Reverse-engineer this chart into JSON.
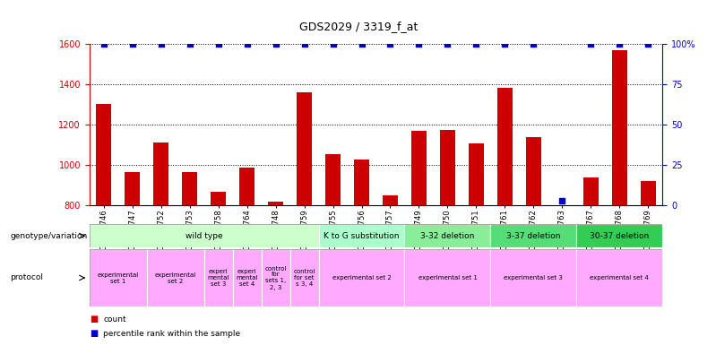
{
  "title": "GDS2029 / 3319_f_at",
  "samples": [
    "GSM86746",
    "GSM86747",
    "GSM86752",
    "GSM86753",
    "GSM86758",
    "GSM86764",
    "GSM86748",
    "GSM86759",
    "GSM86755",
    "GSM86756",
    "GSM86757",
    "GSM86749",
    "GSM86750",
    "GSM86751",
    "GSM86761",
    "GSM86762",
    "GSM86763",
    "GSM86767",
    "GSM86768",
    "GSM86769"
  ],
  "counts": [
    1305,
    965,
    1115,
    965,
    870,
    990,
    820,
    1360,
    1055,
    1030,
    850,
    1170,
    1175,
    1110,
    1385,
    1140,
    800,
    940,
    1570,
    920
  ],
  "percentile_ranks": [
    100,
    100,
    100,
    100,
    100,
    100,
    100,
    100,
    100,
    100,
    100,
    100,
    100,
    100,
    100,
    100,
    3,
    100,
    100,
    100
  ],
  "ylim_left": [
    800,
    1600
  ],
  "ylim_right": [
    0,
    100
  ],
  "yticks_left": [
    800,
    1000,
    1200,
    1400,
    1600
  ],
  "yticks_right": [
    0,
    25,
    50,
    75,
    100
  ],
  "bar_color": "#cc0000",
  "dot_color": "#0000cc",
  "genotype_data": [
    {
      "label": "wild type",
      "start": 0,
      "end": 8,
      "color": "#ccffcc"
    },
    {
      "label": "K to G substitution",
      "start": 8,
      "end": 11,
      "color": "#aaffcc"
    },
    {
      "label": "3-32 deletion",
      "start": 11,
      "end": 14,
      "color": "#88ee99"
    },
    {
      "label": "3-37 deletion",
      "start": 14,
      "end": 17,
      "color": "#55dd77"
    },
    {
      "label": "30-37 deletion",
      "start": 17,
      "end": 20,
      "color": "#33cc55"
    }
  ],
  "protocol_data": [
    {
      "label": "experimental\nset 1",
      "start": 0,
      "end": 2
    },
    {
      "label": "experimental\nset 2",
      "start": 2,
      "end": 4
    },
    {
      "label": "experi\nmental\nset 3",
      "start": 4,
      "end": 5
    },
    {
      "label": "experi\nmental\nset 4",
      "start": 5,
      "end": 6
    },
    {
      "label": "control\nfor\nsets 1,\n2, 3",
      "start": 6,
      "end": 7
    },
    {
      "label": "control\nfor set\ns 3, 4",
      "start": 7,
      "end": 8
    },
    {
      "label": "experimental set 2",
      "start": 8,
      "end": 11
    },
    {
      "label": "experimental set 1",
      "start": 11,
      "end": 14
    },
    {
      "label": "experimental set 3",
      "start": 14,
      "end": 17
    },
    {
      "label": "experimental set 4",
      "start": 17,
      "end": 20
    }
  ],
  "bg_color": "#ffffff",
  "left_axis_color": "#cc0000",
  "right_axis_color": "#0000cc",
  "proto_color": "#ffaaff"
}
